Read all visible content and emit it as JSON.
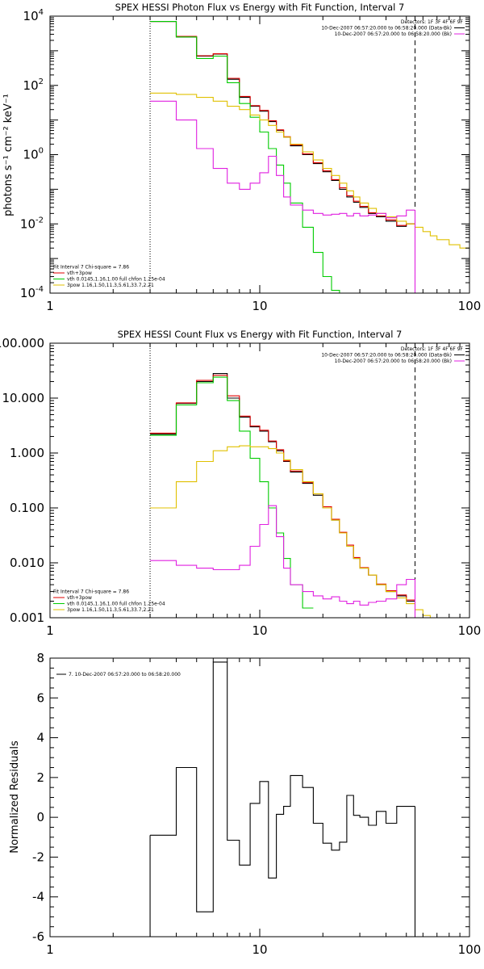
{
  "chart_data": [
    {
      "type": "line",
      "title": "SPEX HESSI Photon Flux vs Energy with Fit Function, Interval 7",
      "xlabel": "",
      "ylabel": "photons s⁻¹ cm⁻² keV⁻¹",
      "x_scale": "log",
      "y_scale": "log",
      "xlim": [
        1,
        100
      ],
      "ylim": [
        0.0001,
        10000
      ],
      "x_ticks": [
        {
          "v": 1,
          "label": "1"
        },
        {
          "v": 10,
          "label": "10"
        },
        {
          "v": 100,
          "label": "100"
        }
      ],
      "y_ticks": [
        {
          "v": 0.0001,
          "base": "10",
          "exp": "-4"
        },
        {
          "v": 0.01,
          "base": "10",
          "exp": "-2"
        },
        {
          "v": 1,
          "base": "10",
          "exp": "0"
        },
        {
          "v": 100,
          "base": "10",
          "exp": "2"
        },
        {
          "v": 10000,
          "base": "10",
          "exp": "4"
        }
      ],
      "header_lines": [
        "Detectors: 1F 3F 4F 6F 9F",
        "10-Dec-2007 06:57:20.000 to 06:58:20.000 (Data-Bk)",
        "10-Dec-2007 06:57:20.000 to 06:58:20.000 (Bk)"
      ],
      "header_colors": [
        "",
        "#000000",
        "#e020e0"
      ],
      "legend_lines": [
        "Fit Interval 7   Chi-square = 7.86",
        "vth+3pow",
        "vth 0.0145,1.16,1.00  full chfon 1.25e-04",
        "3pow 1.16,1.50,11.3,5.61,33.7,2.21"
      ],
      "legend_colors": [
        "",
        "#e00000",
        "#00cc00",
        "#e0c000"
      ],
      "vlines": [
        {
          "x": 3,
          "style": "dotted"
        },
        {
          "x": 55,
          "style": "dashed"
        }
      ],
      "series": [
        {
          "color": "#000000",
          "edges": [
            3,
            4,
            5,
            6,
            7,
            8,
            9,
            10,
            11,
            12,
            13,
            14,
            16,
            18,
            20,
            22,
            24,
            26,
            28,
            30,
            33,
            36,
            40,
            45,
            50,
            55
          ],
          "values": [
            7000,
            2500,
            700,
            800,
            150,
            45,
            25,
            18,
            9,
            5,
            3.2,
            1.8,
            1.0,
            0.55,
            0.32,
            0.18,
            0.1,
            0.06,
            0.042,
            0.03,
            0.02,
            0.016,
            0.012,
            0.0085,
            0.01
          ]
        },
        {
          "color": "#e00000",
          "edges": [
            3,
            4,
            5,
            6,
            7,
            8,
            9,
            10,
            11,
            12,
            13,
            14,
            16,
            18,
            20,
            22,
            24,
            26,
            28,
            30,
            33,
            36,
            40,
            45,
            50,
            55
          ],
          "values": [
            7000,
            2600,
            720,
            820,
            160,
            48,
            26,
            19,
            9.5,
            5.2,
            3.3,
            1.9,
            1.05,
            0.58,
            0.34,
            0.19,
            0.11,
            0.065,
            0.045,
            0.032,
            0.021,
            0.017,
            0.013,
            0.009,
            0.01
          ]
        },
        {
          "color": "#00cc00",
          "edges": [
            3,
            4,
            5,
            6,
            7,
            8,
            9,
            10,
            11,
            12,
            13,
            14,
            16,
            18,
            20,
            22,
            24,
            26
          ],
          "values": [
            7000,
            2500,
            600,
            700,
            120,
            30,
            12,
            4.5,
            1.5,
            0.5,
            0.15,
            0.04,
            0.008,
            0.0015,
            0.0003,
            0.00012,
            0.0001
          ]
        },
        {
          "color": "#e0c000",
          "edges": [
            3,
            4,
            5,
            6,
            7,
            8,
            9,
            10,
            11,
            12,
            13,
            14,
            16,
            18,
            20,
            22,
            24,
            26,
            28,
            30,
            33,
            36,
            40,
            45,
            50,
            55,
            60,
            65,
            70,
            80,
            90,
            100
          ],
          "values": [
            60,
            55,
            45,
            35,
            25,
            20,
            14,
            10,
            7,
            4.5,
            3.2,
            2,
            1.2,
            0.7,
            0.4,
            0.25,
            0.15,
            0.09,
            0.06,
            0.04,
            0.028,
            0.02,
            0.016,
            0.012,
            0.01,
            0.008,
            0.006,
            0.0045,
            0.0035,
            0.0025,
            0.002
          ]
        },
        {
          "color": "#e020e0",
          "edges": [
            3,
            4,
            5,
            6,
            7,
            8,
            9,
            10,
            11,
            12,
            13,
            14,
            16,
            18,
            20,
            22,
            24,
            26,
            28,
            30,
            33,
            36,
            40,
            45,
            50,
            55
          ],
          "values": [
            35,
            10,
            1.5,
            0.4,
            0.15,
            0.1,
            0.15,
            0.3,
            0.9,
            0.25,
            0.06,
            0.035,
            0.025,
            0.02,
            0.018,
            0.019,
            0.02,
            0.017,
            0.02,
            0.017,
            0.018,
            0.02,
            0.015,
            0.017,
            0.025
          ]
        }
      ],
      "drop_lines": [
        {
          "x": 55,
          "from": 0.025,
          "color": "#e020e0"
        }
      ]
    },
    {
      "type": "line",
      "title": "SPEX HESSI Count Flux vs Energy with Fit Function, Interval 7",
      "xlabel": "",
      "ylabel": "",
      "x_scale": "log",
      "y_scale": "log",
      "xlim": [
        1,
        100
      ],
      "ylim": [
        0.001,
        100
      ],
      "x_ticks": [
        {
          "v": 1,
          "label": "1"
        },
        {
          "v": 10,
          "label": "10"
        },
        {
          "v": 100,
          "label": "100"
        }
      ],
      "y_ticks": [
        {
          "v": 0.001,
          "label": "0.001"
        },
        {
          "v": 0.01,
          "label": "0.010"
        },
        {
          "v": 0.1,
          "label": "0.100"
        },
        {
          "v": 1,
          "label": "1.000"
        },
        {
          "v": 10,
          "label": "10.000"
        },
        {
          "v": 100,
          "label": "100.000"
        }
      ],
      "header_lines": [
        "Detectors: 1F 3F 4F 6F 9F",
        "10-Dec-2007 06:57:20.000 to 06:58:20.000 (Data-Bk)",
        "10-Dec-2007 06:57:20.000 to 06:58:20.000 (Bk)"
      ],
      "header_colors": [
        "",
        "#000000",
        "#e020e0"
      ],
      "legend_lines": [
        "Fit Interval 7   Chi-square = 7.86",
        "vth+3pow",
        "vth 0.0145,1.16,1.00  full chfon 1.25e-04",
        "3pow 1.16,1.50,11.3,5.61,33.7,2.21"
      ],
      "legend_colors": [
        "",
        "#e00000",
        "#00cc00",
        "#e0c000"
      ],
      "vlines": [
        {
          "x": 3,
          "style": "dotted"
        },
        {
          "x": 55,
          "style": "dashed"
        }
      ],
      "series": [
        {
          "color": "#000000",
          "edges": [
            3,
            4,
            5,
            6,
            7,
            8,
            9,
            10,
            11,
            12,
            13,
            14,
            16,
            18,
            20,
            22,
            24,
            26,
            28,
            30,
            33,
            36,
            40,
            45,
            50,
            55
          ],
          "values": [
            2.2,
            8,
            20,
            28,
            10,
            4.5,
            3,
            2.5,
            1.6,
            1.1,
            0.7,
            0.45,
            0.28,
            0.17,
            0.1,
            0.06,
            0.035,
            0.02,
            0.012,
            0.008,
            0.006,
            0.004,
            0.003,
            0.0025,
            0.002
          ]
        },
        {
          "color": "#e00000",
          "edges": [
            3,
            4,
            5,
            6,
            7,
            8,
            9,
            10,
            11,
            12,
            13,
            14,
            16,
            18,
            20,
            22,
            24,
            26,
            28,
            30,
            33,
            36,
            40,
            45,
            50,
            55
          ],
          "values": [
            2.3,
            8.2,
            21,
            26,
            11,
            4.7,
            3.1,
            2.6,
            1.65,
            1.15,
            0.72,
            0.47,
            0.29,
            0.18,
            0.105,
            0.062,
            0.036,
            0.021,
            0.0125,
            0.0082,
            0.006,
            0.0041,
            0.0031,
            0.0026,
            0.0021
          ]
        },
        {
          "color": "#00cc00",
          "edges": [
            3,
            4,
            5,
            6,
            7,
            8,
            9,
            10,
            11,
            12,
            13,
            14,
            16,
            18
          ],
          "values": [
            2.1,
            7.5,
            19,
            24,
            9,
            2.5,
            0.8,
            0.3,
            0.1,
            0.035,
            0.012,
            0.004,
            0.0015
          ]
        },
        {
          "color": "#e0c000",
          "edges": [
            3,
            4,
            5,
            6,
            7,
            8,
            9,
            10,
            11,
            12,
            13,
            14,
            16,
            18,
            20,
            22,
            24,
            26,
            28,
            30,
            33,
            36,
            40,
            45,
            50,
            55,
            60,
            65,
            70
          ],
          "values": [
            0.1,
            0.3,
            0.7,
            1.1,
            1.3,
            1.35,
            1.3,
            1.3,
            1.2,
            1.0,
            0.75,
            0.5,
            0.3,
            0.18,
            0.1,
            0.06,
            0.035,
            0.02,
            0.012,
            0.008,
            0.006,
            0.004,
            0.003,
            0.0023,
            0.0018,
            0.0014,
            0.0011,
            0.0009
          ]
        },
        {
          "color": "#e020e0",
          "edges": [
            3,
            4,
            5,
            6,
            7,
            8,
            9,
            10,
            11,
            12,
            13,
            14,
            16,
            18,
            20,
            22,
            24,
            26,
            28,
            30,
            33,
            36,
            40,
            45,
            50,
            55
          ],
          "values": [
            0.011,
            0.009,
            0.008,
            0.0075,
            0.0075,
            0.009,
            0.02,
            0.05,
            0.11,
            0.03,
            0.008,
            0.004,
            0.003,
            0.0025,
            0.0022,
            0.0024,
            0.002,
            0.0018,
            0.002,
            0.0017,
            0.0019,
            0.002,
            0.0022,
            0.004,
            0.005
          ]
        }
      ],
      "drop_lines": [
        {
          "x": 55,
          "from": 0.005,
          "color": "#e020e0"
        }
      ]
    },
    {
      "type": "line",
      "title": "",
      "xlabel": "",
      "ylabel": "Normalized Residuals",
      "x_scale": "log",
      "y_scale": "linear",
      "xlim": [
        1,
        100
      ],
      "ylim": [
        -6,
        8
      ],
      "x_ticks": [
        {
          "v": 1,
          "label": "1"
        },
        {
          "v": 10,
          "label": "10"
        },
        {
          "v": 100,
          "label": "100"
        }
      ],
      "y_ticks": [
        {
          "v": -6,
          "label": "-6"
        },
        {
          "v": -4,
          "label": "-4"
        },
        {
          "v": -2,
          "label": "-2"
        },
        {
          "v": 0,
          "label": "0"
        },
        {
          "v": 2,
          "label": "2"
        },
        {
          "v": 4,
          "label": "4"
        },
        {
          "v": 6,
          "label": "6"
        },
        {
          "v": 8,
          "label": "8"
        }
      ],
      "header_lines": [],
      "header_colors": [],
      "legend_lines": [
        "7. 10-Dec-2007 06:57:20.000 to 06:58:20.000"
      ],
      "legend_colors": [
        "#000000"
      ],
      "legend_position": "top-left",
      "vlines": [],
      "series": [
        {
          "color": "#000000",
          "edges": [
            3,
            4,
            5,
            6,
            7,
            8,
            9,
            10,
            11,
            12,
            13,
            14,
            16,
            18,
            20,
            22,
            24,
            26,
            28,
            30,
            33,
            36,
            40,
            45,
            50,
            55
          ],
          "values": [
            -0.9,
            2.5,
            -4.75,
            7.8,
            -1.15,
            -2.4,
            0.7,
            1.8,
            -3.05,
            0.15,
            0.55,
            2.1,
            1.5,
            -0.3,
            -1.3,
            -1.65,
            -1.25,
            1.1,
            0.1,
            0.0,
            -0.4,
            0.3,
            -0.3,
            0.55,
            0.55
          ]
        }
      ],
      "drop_lines": [
        {
          "x": 3,
          "from": -0.9,
          "color": "#000000"
        },
        {
          "x": 55,
          "from": 0.55,
          "color": "#000000"
        }
      ]
    }
  ]
}
